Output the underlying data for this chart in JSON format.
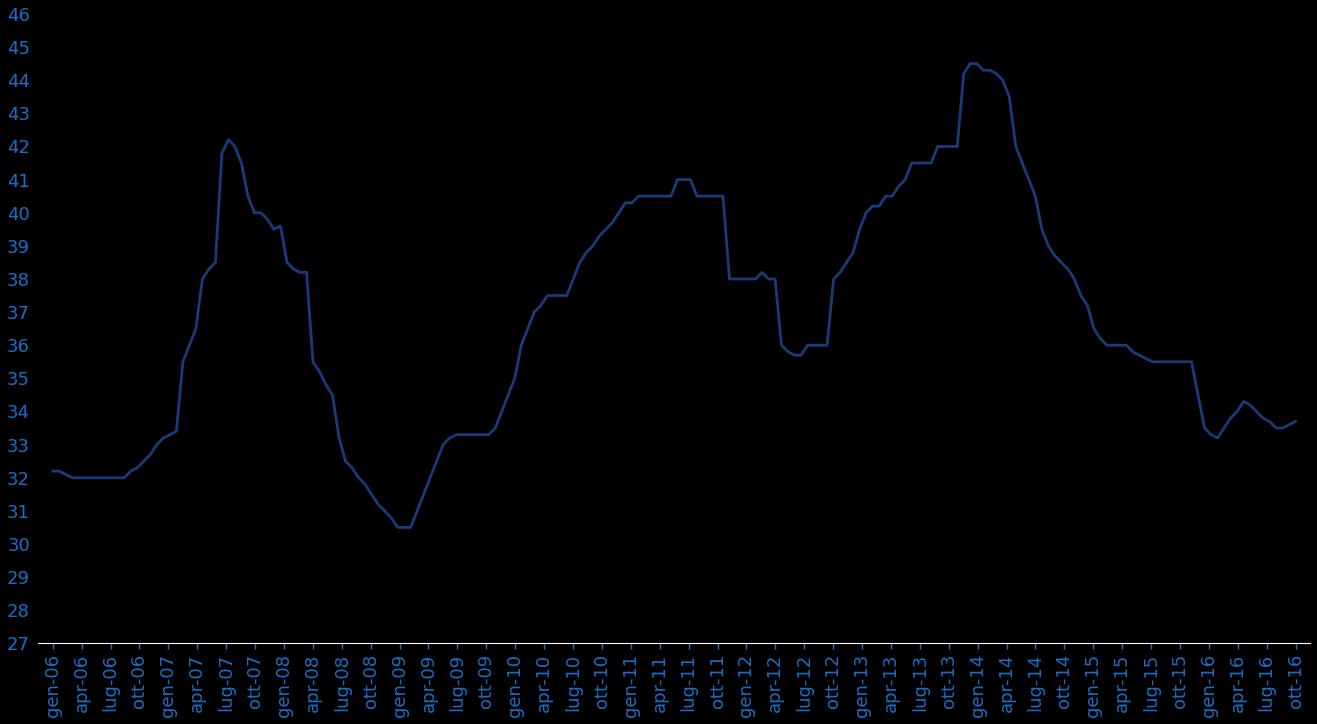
{
  "background_color": "#000000",
  "line_color": "#1a3a7a",
  "line_width": 2.0,
  "ylim": [
    27,
    46
  ],
  "yticks": [
    27,
    28,
    29,
    30,
    31,
    32,
    33,
    34,
    35,
    36,
    37,
    38,
    39,
    40,
    41,
    42,
    43,
    44,
    45,
    46
  ],
  "tick_color": "#1a6fc4",
  "tick_fontsize": 13,
  "x_labels": [
    "gen-06",
    "apr-06",
    "lug-06",
    "ott-06",
    "gen-07",
    "apr-07",
    "lug-07",
    "ott-07",
    "gen-08",
    "apr-08",
    "lug-08",
    "ott-08",
    "gen-09",
    "apr-09",
    "lug-09",
    "ott-09",
    "gen-10",
    "apr-10",
    "lug-10",
    "ott-10",
    "gen-11",
    "apr-11",
    "lug-11",
    "ott-11",
    "gen-12",
    "apr-12",
    "lug-12",
    "ott-12",
    "gen-13",
    "apr-13",
    "lug-13",
    "ott-13",
    "gen-14",
    "apr-14",
    "lug-14",
    "ott-14",
    "gen-15",
    "apr-15",
    "lug-15",
    "ott-15",
    "gen-16",
    "apr-16",
    "lug-16",
    "ott-16"
  ],
  "series": [
    32.2,
    32.2,
    32.1,
    32.0,
    32.0,
    32.0,
    32.0,
    32.0,
    32.0,
    32.0,
    32.0,
    32.0,
    32.2,
    32.3,
    32.5,
    32.7,
    33.0,
    33.2,
    33.3,
    33.4,
    35.5,
    36.0,
    36.5,
    38.0,
    38.3,
    38.5,
    41.8,
    42.2,
    42.0,
    41.5,
    40.5,
    40.0,
    40.0,
    39.8,
    39.5,
    39.6,
    38.5,
    38.3,
    38.2,
    38.2,
    35.5,
    35.2,
    34.8,
    34.5,
    33.2,
    32.5,
    32.3,
    32.0,
    31.8,
    31.5,
    31.2,
    31.0,
    30.8,
    30.5,
    30.5,
    30.5,
    31.0,
    31.5,
    32.0,
    32.5,
    33.0,
    33.2,
    33.3,
    33.3,
    33.3,
    33.3,
    33.3,
    33.3,
    33.5,
    34.0,
    34.5,
    35.0,
    36.0,
    36.5,
    37.0,
    37.2,
    37.5,
    37.5,
    37.5,
    37.5,
    38.0,
    38.5,
    38.8,
    39.0,
    39.3,
    39.5,
    39.7,
    40.0,
    40.3,
    40.3,
    40.5,
    40.5,
    40.5,
    40.5,
    40.5,
    40.5,
    41.0,
    41.0,
    41.0,
    40.5,
    40.5,
    40.5,
    40.5,
    40.5,
    38.0,
    38.0,
    38.0,
    38.0,
    38.0,
    38.2,
    38.0,
    38.0,
    36.0,
    35.8,
    35.7,
    35.7,
    36.0,
    36.0,
    36.0,
    36.0,
    38.0,
    38.2,
    38.5,
    38.8,
    39.5,
    40.0,
    40.2,
    40.2,
    40.5,
    40.5,
    40.8,
    41.0,
    41.5,
    41.5,
    41.5,
    41.5,
    42.0,
    42.0,
    42.0,
    42.0,
    44.2,
    44.5,
    44.5,
    44.3,
    44.3,
    44.2,
    44.0,
    43.5,
    42.0,
    41.5,
    41.0,
    40.5,
    39.5,
    39.0,
    38.7,
    38.5,
    38.3,
    38.0,
    37.5,
    37.2,
    36.5,
    36.2,
    36.0,
    36.0,
    36.0,
    36.0,
    35.8,
    35.7,
    35.6,
    35.5,
    35.5,
    35.5,
    35.5,
    35.5,
    35.5,
    35.5,
    34.5,
    33.5,
    33.3,
    33.2,
    33.5,
    33.8,
    34.0,
    34.3,
    34.2,
    34.0,
    33.8,
    33.7,
    33.5,
    33.5,
    33.6,
    33.7
  ]
}
